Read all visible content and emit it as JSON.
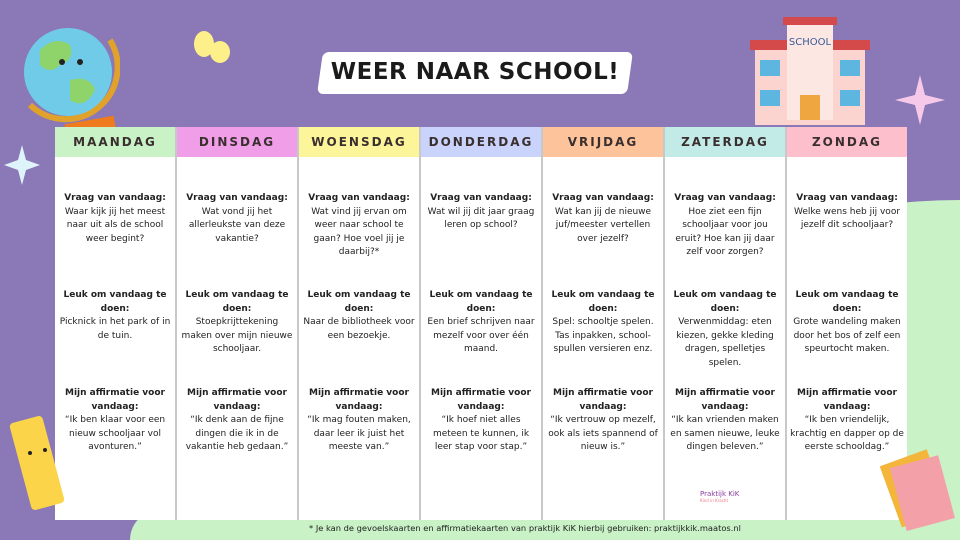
{
  "title": "WEER NAAR SCHOOL!",
  "school_sign": "SCHOOL",
  "colors": {
    "background": "#8b78b6",
    "accent_green": "#c9f2c7"
  },
  "days": [
    {
      "name": "MAANDAG",
      "color": "#c9f2c7",
      "question": "Waar kijk jij het meest naar uit als de school weer begint?",
      "activity": "Picknick in het park of in de tuin.",
      "affirmation": "“Ik ben klaar voor een nieuw schooljaar vol avonturen.”"
    },
    {
      "name": "DINSDAG",
      "color": "#f09ee8",
      "question": "Wat vond jij het allerleukste van deze vakantie?",
      "activity": "Stoepkrijttekening maken over mijn nieuwe schooljaar.",
      "affirmation": "“Ik denk aan de fijne dingen die ik in de vakantie heb gedaan.”"
    },
    {
      "name": "WOENSDAG",
      "color": "#fdf59a",
      "question": "Wat vind jij ervan om weer naar school te gaan? Hoe voel jij je daarbij?*",
      "activity": "Naar de bibliotheek voor een bezoekje.",
      "affirmation": "“Ik mag fouten maken, daar leer ik juist het meeste van.”"
    },
    {
      "name": "DONDERDAG",
      "color": "#c9d3fb",
      "question": "Wat wil jij dit jaar graag leren op school?",
      "activity": "Een brief schrijven naar mezelf voor over één maand.",
      "affirmation": "“Ik hoef niet alles meteen te kunnen, ik leer stap voor stap.”"
    },
    {
      "name": "VRIJDAG",
      "color": "#fdc39b",
      "question": "Wat kan jij de nieuwe juf/meester vertellen over jezelf?",
      "activity": "Spel: schooltje spelen. Tas inpakken, school-spullen versieren enz.",
      "affirmation": "“Ik vertrouw op mezelf, ook als iets spannend of nieuw is.”"
    },
    {
      "name": "ZATERDAG",
      "color": "#c2ebe8",
      "question": "Hoe ziet een fijn schooljaar voor jou eruit? Hoe kan jij daar zelf voor zorgen?",
      "activity": "Verwenmiddag: eten kiezen, gekke kleding dragen, spelletjes spelen.",
      "affirmation": "“Ik kan vrienden maken en samen nieuwe, leuke dingen beleven.”"
    },
    {
      "name": "ZONDAG",
      "color": "#fdbfcc",
      "question": "Welke wens heb jij voor jezelf dit schooljaar?",
      "activity": "Grote wandeling maken door het bos of zelf een speurtocht maken.",
      "affirmation": "“Ik ben vriendelijk, krachtig en dapper op de eerste schooldag.”"
    }
  ],
  "labels": {
    "question": "Vraag van vandaag:",
    "activity": "Leuk om vandaag te doen:",
    "affirmation": "Mijn affirmatie voor vandaag:"
  },
  "footer": "* Je kan de gevoelskaarten en affirmatiekaarten van praktijk KiK hierbij gebruiken: praktijkkik.maatos.nl",
  "logo": {
    "name": "Praktijk KiK",
    "tagline": "Kind in Kracht"
  }
}
